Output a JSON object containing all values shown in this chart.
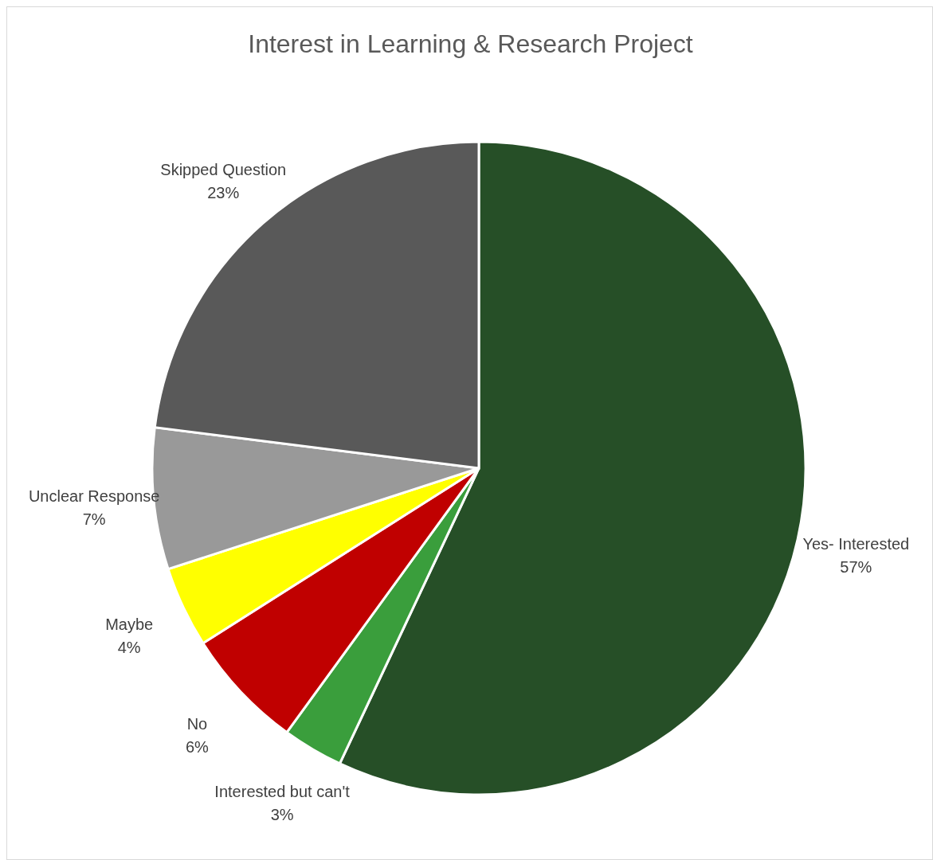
{
  "chart_data": {
    "type": "pie",
    "title": "Interest in Learning & Research Project",
    "categories": [
      "Yes- Interested",
      "Interested but can't",
      "No",
      "Maybe",
      "Unclear Response",
      "Skipped Question"
    ],
    "values": [
      57,
      3,
      6,
      4,
      7,
      23
    ],
    "colors": [
      "#264f27",
      "#3a9e3c",
      "#c00000",
      "#ffff00",
      "#999999",
      "#595959"
    ],
    "value_labels": [
      "57%",
      "3%",
      "6%",
      "4%",
      "7%",
      "23%"
    ]
  }
}
